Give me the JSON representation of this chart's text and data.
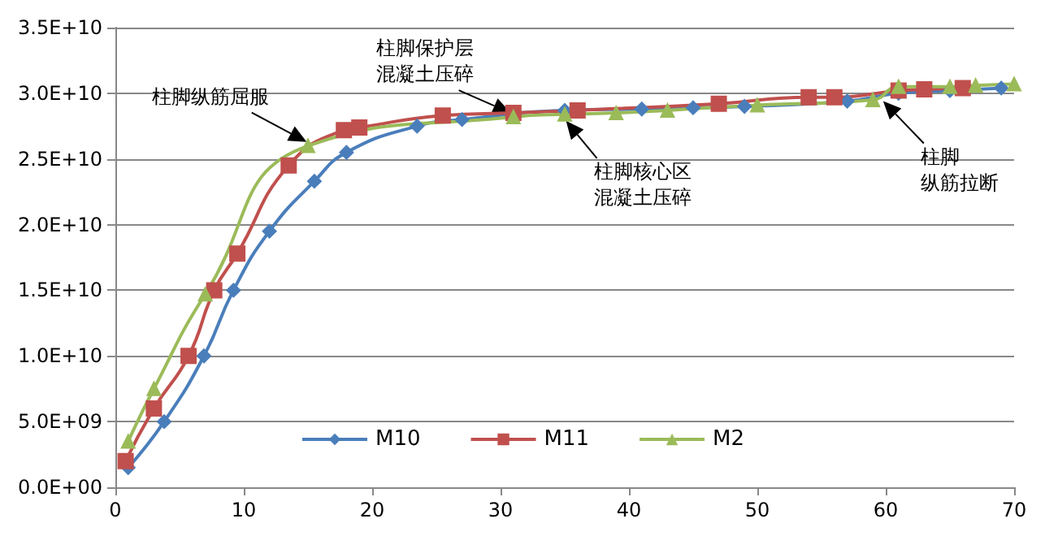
{
  "chart_data": {
    "type": "line",
    "xlim": [
      0,
      70
    ],
    "xticks": [
      0,
      10,
      20,
      30,
      40,
      50,
      60,
      70
    ],
    "ylim": [
      0,
      35000000000
    ],
    "yticks": [
      {
        "value": 0,
        "label": "0.0E+00"
      },
      {
        "value": 5000000000,
        "label": "5.0E+09"
      },
      {
        "value": 10000000000,
        "label": "1.0E+10"
      },
      {
        "value": 15000000000,
        "label": "1.5E+10"
      },
      {
        "value": 20000000000,
        "label": "2.0E+10"
      },
      {
        "value": 25000000000,
        "label": "2.5E+10"
      },
      {
        "value": 30000000000,
        "label": "3.0E+10"
      },
      {
        "value": 35000000000,
        "label": "3.5E+10"
      }
    ],
    "grid": "y",
    "legend": "bottom",
    "series": [
      {
        "name": "M10",
        "color": "#4a7ebb",
        "marker": "diamond",
        "x": [
          1,
          3.8,
          6.9,
          9.2,
          12,
          15.5,
          18,
          23.5,
          27,
          35,
          41,
          45,
          49,
          57,
          61,
          65,
          69
        ],
        "values": [
          1500000000,
          5000000000,
          10000000000,
          15000000000,
          19500000000,
          23300000000,
          25500000000,
          27500000000,
          28000000000,
          28700000000,
          28800000000,
          28900000000,
          29000000000,
          29400000000,
          30000000000,
          30200000000,
          30400000000
        ]
      },
      {
        "name": "M11",
        "color": "#c0504d",
        "marker": "square",
        "x": [
          0.8,
          3,
          5.7,
          7.7,
          9.5,
          13.5,
          17.8,
          19,
          25.5,
          31,
          36,
          47,
          54,
          56,
          61,
          63,
          66
        ],
        "values": [
          2000000000,
          6000000000,
          10000000000,
          15000000000,
          17800000000,
          24500000000,
          27200000000,
          27400000000,
          28300000000,
          28500000000,
          28700000000,
          29200000000,
          29700000000,
          29700000000,
          30200000000,
          30300000000,
          30400000000
        ]
      },
      {
        "name": "M2",
        "color": "#9bbb59",
        "marker": "triangle",
        "x": [
          1,
          3,
          7,
          15,
          31,
          35,
          39,
          43,
          50,
          59,
          61,
          65,
          67,
          70
        ],
        "values": [
          3500000000,
          7500000000,
          14700000000,
          26000000000,
          28200000000,
          28400000000,
          28500000000,
          28700000000,
          29100000000,
          29500000000,
          30500000000,
          30500000000,
          30600000000,
          30700000000
        ]
      }
    ],
    "annotations": [
      {
        "text": "柱脚纵筋屈服",
        "x": 14.9,
        "y": 26300000000
      },
      {
        "text": "柱脚保护层混凝土压碎",
        "x": 30.8,
        "y": 28500000000
      },
      {
        "text": "柱脚核心区混凝土压碎",
        "x": 35.1,
        "y": 27900000000
      },
      {
        "text": "柱脚纵筋拉断",
        "x": 59.8,
        "y": 29400000000
      }
    ]
  }
}
